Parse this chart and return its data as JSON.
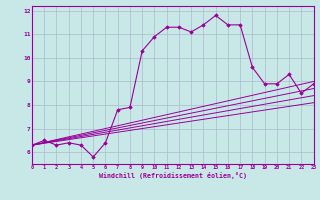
{
  "xlabel": "Windchill (Refroidissement éolien,°C)",
  "ylabel": "",
  "xlim": [
    0,
    23
  ],
  "ylim": [
    5.5,
    12.2
  ],
  "xticks": [
    0,
    1,
    2,
    3,
    4,
    5,
    6,
    7,
    8,
    9,
    10,
    11,
    12,
    13,
    14,
    15,
    16,
    17,
    18,
    19,
    20,
    21,
    22,
    23
  ],
  "yticks": [
    6,
    7,
    8,
    9,
    10,
    11,
    12
  ],
  "background_color": "#c8e8e8",
  "line_color": "#990099",
  "grid_color": "#aabbcc",
  "series": [
    {
      "x": [
        0,
        1,
        2,
        3,
        4,
        5,
        6,
        7,
        8,
        9,
        10,
        11,
        12,
        13,
        14,
        15,
        16,
        17,
        18,
        19,
        20,
        21,
        22,
        23
      ],
      "y": [
        6.3,
        6.5,
        6.3,
        6.4,
        6.3,
        5.8,
        6.4,
        7.8,
        7.9,
        10.3,
        10.9,
        11.3,
        11.3,
        11.1,
        11.4,
        11.8,
        11.4,
        11.4,
        9.6,
        8.9,
        8.9,
        9.3,
        8.5,
        8.9
      ]
    },
    {
      "x": [
        0,
        23
      ],
      "y": [
        6.3,
        9.0
      ]
    },
    {
      "x": [
        0,
        23
      ],
      "y": [
        6.3,
        8.7
      ]
    },
    {
      "x": [
        0,
        23
      ],
      "y": [
        6.3,
        8.4
      ]
    },
    {
      "x": [
        0,
        23
      ],
      "y": [
        6.3,
        8.1
      ]
    }
  ]
}
